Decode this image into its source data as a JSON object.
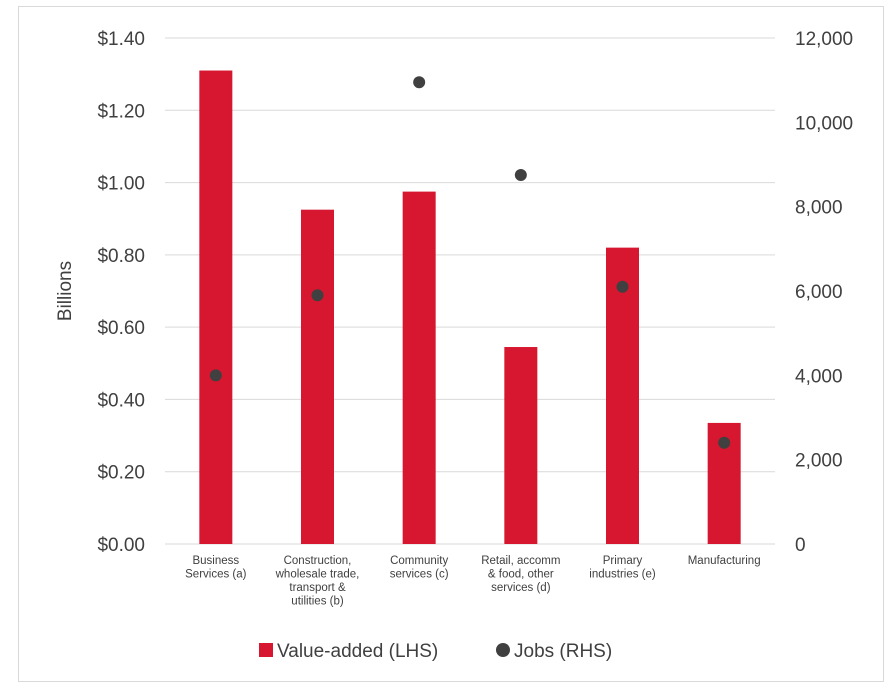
{
  "chart_data": {
    "type": "bar",
    "title": "",
    "ylabel": "Billions",
    "y2label": "",
    "categories": [
      [
        "Business",
        "Services (a)"
      ],
      [
        "Construction,",
        "wholesale trade,",
        "transport &",
        "utilities (b)"
      ],
      [
        "Community",
        "services (c)"
      ],
      [
        "Retail, accomm",
        "& food, other",
        "services (d)"
      ],
      [
        "Primary",
        "industries (e)"
      ],
      [
        "Manufacturing"
      ]
    ],
    "series": [
      {
        "name": "Value-added (LHS)",
        "type": "bar",
        "axis": "left",
        "color": "#d6172f",
        "values": [
          1.31,
          0.925,
          0.975,
          0.545,
          0.82,
          0.335
        ]
      },
      {
        "name": "Jobs (RHS)",
        "type": "scatter",
        "axis": "right",
        "color": "#404040",
        "values": [
          4000,
          5900,
          10950,
          8750,
          6100,
          2400
        ]
      }
    ],
    "ylim": [
      0,
      1.4
    ],
    "y2lim": [
      0,
      12000
    ],
    "yticks": [
      "$0.00",
      "$0.20",
      "$0.40",
      "$0.60",
      "$0.80",
      "$1.00",
      "$1.20",
      "$1.40"
    ],
    "y2ticks": [
      "0",
      "2,000",
      "4,000",
      "6,000",
      "8,000",
      "10,000",
      "12,000"
    ],
    "grid": true,
    "legend": "bottom"
  }
}
